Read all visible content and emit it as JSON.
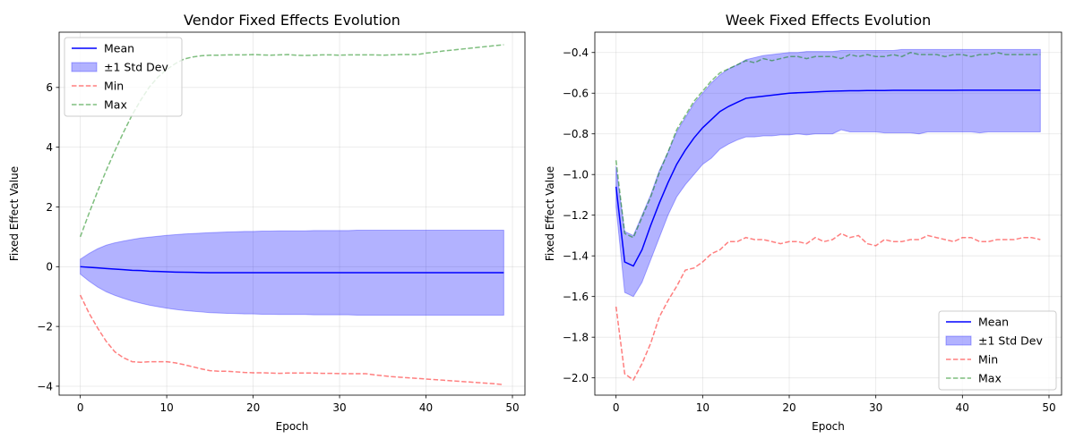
{
  "chart_data": [
    {
      "type": "line",
      "title": "Vendor Fixed Effects Evolution",
      "xlabel": "Epoch",
      "ylabel": "Fixed Effect Value",
      "xlim": [
        -2.45,
        51.45
      ],
      "ylim": [
        -4.3,
        7.85
      ],
      "xticks": [
        0,
        10,
        20,
        30,
        40,
        50
      ],
      "yticks": [
        -4,
        -2,
        0,
        2,
        4,
        6
      ],
      "grid": true,
      "legend": "upper left",
      "x": [
        0,
        1,
        2,
        3,
        4,
        5,
        6,
        7,
        8,
        9,
        10,
        11,
        12,
        13,
        14,
        15,
        16,
        17,
        18,
        19,
        20,
        21,
        22,
        23,
        24,
        25,
        26,
        27,
        28,
        29,
        30,
        31,
        32,
        33,
        34,
        35,
        36,
        37,
        38,
        39,
        40,
        41,
        42,
        43,
        44,
        45,
        46,
        47,
        48,
        49
      ],
      "mean": [
        0,
        -0.02,
        -0.04,
        -0.06,
        -0.08,
        -0.1,
        -0.12,
        -0.13,
        -0.15,
        -0.16,
        -0.17,
        -0.18,
        -0.185,
        -0.19,
        -0.195,
        -0.2,
        -0.2,
        -0.2,
        -0.2,
        -0.2,
        -0.2,
        -0.2,
        -0.2,
        -0.2,
        -0.2,
        -0.2,
        -0.2,
        -0.2,
        -0.2,
        -0.2,
        -0.2,
        -0.2,
        -0.2,
        -0.2,
        -0.2,
        -0.2,
        -0.2,
        -0.2,
        -0.2,
        -0.2,
        -0.2,
        -0.2,
        -0.2,
        -0.2,
        -0.2,
        -0.2,
        -0.2,
        -0.2,
        -0.2,
        -0.2
      ],
      "std": [
        0.25,
        0.46,
        0.64,
        0.78,
        0.88,
        0.96,
        1.03,
        1.09,
        1.14,
        1.18,
        1.22,
        1.25,
        1.28,
        1.3,
        1.32,
        1.34,
        1.35,
        1.36,
        1.37,
        1.38,
        1.38,
        1.39,
        1.39,
        1.4,
        1.4,
        1.4,
        1.4,
        1.41,
        1.41,
        1.41,
        1.41,
        1.41,
        1.42,
        1.42,
        1.42,
        1.42,
        1.42,
        1.42,
        1.42,
        1.42,
        1.42,
        1.42,
        1.42,
        1.42,
        1.42,
        1.42,
        1.42,
        1.42,
        1.42,
        1.42
      ],
      "min": [
        -0.95,
        -1.55,
        -2.05,
        -2.5,
        -2.85,
        -3.05,
        -3.18,
        -3.2,
        -3.18,
        -3.18,
        -3.18,
        -3.22,
        -3.28,
        -3.35,
        -3.42,
        -3.48,
        -3.5,
        -3.5,
        -3.52,
        -3.54,
        -3.55,
        -3.55,
        -3.56,
        -3.57,
        -3.56,
        -3.56,
        -3.56,
        -3.56,
        -3.57,
        -3.57,
        -3.58,
        -3.58,
        -3.58,
        -3.58,
        -3.62,
        -3.65,
        -3.68,
        -3.7,
        -3.72,
        -3.74,
        -3.76,
        -3.78,
        -3.8,
        -3.82,
        -3.84,
        -3.86,
        -3.88,
        -3.9,
        -3.92,
        -3.95
      ],
      "max": [
        1.0,
        1.78,
        2.52,
        3.22,
        3.88,
        4.5,
        5.08,
        5.58,
        6.02,
        6.35,
        6.6,
        6.8,
        6.95,
        7.02,
        7.06,
        7.08,
        7.08,
        7.09,
        7.09,
        7.09,
        7.1,
        7.09,
        7.08,
        7.09,
        7.1,
        7.08,
        7.07,
        7.08,
        7.09,
        7.09,
        7.08,
        7.09,
        7.09,
        7.09,
        7.09,
        7.08,
        7.09,
        7.1,
        7.1,
        7.1,
        7.15,
        7.18,
        7.22,
        7.25,
        7.28,
        7.31,
        7.34,
        7.37,
        7.4,
        7.43
      ],
      "series_names": [
        "Mean",
        "±1 Std Dev",
        "Min",
        "Max"
      ]
    },
    {
      "type": "line",
      "title": "Week Fixed Effects Evolution",
      "xlabel": "Epoch",
      "ylabel": "Fixed Effect Value",
      "xlim": [
        -2.45,
        51.45
      ],
      "ylim": [
        -2.085,
        -0.3
      ],
      "xticks": [
        0,
        10,
        20,
        30,
        40,
        50
      ],
      "yticks": [
        -2.0,
        -1.8,
        -1.6,
        -1.4,
        -1.2,
        -1.0,
        -0.8,
        -0.6,
        -0.4
      ],
      "grid": true,
      "legend": "lower right",
      "x": [
        0,
        1,
        2,
        3,
        4,
        5,
        6,
        7,
        8,
        9,
        10,
        11,
        12,
        13,
        14,
        15,
        16,
        17,
        18,
        19,
        20,
        21,
        22,
        23,
        24,
        25,
        26,
        27,
        28,
        29,
        30,
        31,
        32,
        33,
        34,
        35,
        36,
        37,
        38,
        39,
        40,
        41,
        42,
        43,
        44,
        45,
        46,
        47,
        48,
        49
      ],
      "mean": [
        -1.06,
        -1.43,
        -1.45,
        -1.37,
        -1.25,
        -1.14,
        -1.04,
        -0.95,
        -0.88,
        -0.82,
        -0.77,
        -0.73,
        -0.69,
        -0.665,
        -0.645,
        -0.625,
        -0.62,
        -0.615,
        -0.61,
        -0.605,
        -0.6,
        -0.598,
        -0.596,
        -0.594,
        -0.592,
        -0.59,
        -0.589,
        -0.588,
        -0.588,
        -0.587,
        -0.587,
        -0.587,
        -0.586,
        -0.586,
        -0.586,
        -0.586,
        -0.586,
        -0.586,
        -0.586,
        -0.586,
        -0.585,
        -0.585,
        -0.585,
        -0.585,
        -0.585,
        -0.585,
        -0.585,
        -0.585,
        -0.585,
        -0.585
      ],
      "upper": [
        -0.96,
        -1.28,
        -1.3,
        -1.2,
        -1.1,
        -0.98,
        -0.89,
        -0.79,
        -0.72,
        -0.65,
        -0.6,
        -0.55,
        -0.51,
        -0.48,
        -0.46,
        -0.435,
        -0.425,
        -0.415,
        -0.41,
        -0.405,
        -0.4,
        -0.4,
        -0.395,
        -0.395,
        -0.395,
        -0.395,
        -0.39,
        -0.39,
        -0.39,
        -0.39,
        -0.39,
        -0.39,
        -0.39,
        -0.385,
        -0.385,
        -0.385,
        -0.385,
        -0.385,
        -0.385,
        -0.385,
        -0.385,
        -0.385,
        -0.385,
        -0.385,
        -0.385,
        -0.385,
        -0.385,
        -0.385,
        -0.385,
        -0.385
      ],
      "lower": [
        -1.16,
        -1.58,
        -1.6,
        -1.53,
        -1.42,
        -1.31,
        -1.2,
        -1.11,
        -1.05,
        -1.0,
        -0.95,
        -0.92,
        -0.875,
        -0.85,
        -0.83,
        -0.815,
        -0.815,
        -0.81,
        -0.81,
        -0.805,
        -0.805,
        -0.8,
        -0.805,
        -0.8,
        -0.8,
        -0.8,
        -0.78,
        -0.79,
        -0.79,
        -0.79,
        -0.79,
        -0.795,
        -0.795,
        -0.795,
        -0.795,
        -0.8,
        -0.79,
        -0.79,
        -0.79,
        -0.79,
        -0.79,
        -0.79,
        -0.795,
        -0.79,
        -0.79,
        -0.79,
        -0.79,
        -0.79,
        -0.79,
        -0.79
      ],
      "min": [
        -1.65,
        -1.98,
        -2.01,
        -1.93,
        -1.83,
        -1.7,
        -1.62,
        -1.55,
        -1.47,
        -1.46,
        -1.43,
        -1.39,
        -1.37,
        -1.33,
        -1.33,
        -1.31,
        -1.32,
        -1.32,
        -1.33,
        -1.34,
        -1.33,
        -1.33,
        -1.34,
        -1.31,
        -1.33,
        -1.32,
        -1.29,
        -1.31,
        -1.3,
        -1.34,
        -1.35,
        -1.32,
        -1.33,
        -1.33,
        -1.32,
        -1.32,
        -1.3,
        -1.31,
        -1.32,
        -1.33,
        -1.31,
        -1.31,
        -1.33,
        -1.33,
        -1.32,
        -1.32,
        -1.32,
        -1.31,
        -1.31,
        -1.32
      ],
      "max": [
        -0.93,
        -1.29,
        -1.31,
        -1.21,
        -1.11,
        -0.99,
        -0.89,
        -0.78,
        -0.71,
        -0.64,
        -0.59,
        -0.54,
        -0.5,
        -0.48,
        -0.46,
        -0.44,
        -0.45,
        -0.43,
        -0.44,
        -0.43,
        -0.42,
        -0.42,
        -0.43,
        -0.42,
        -0.42,
        -0.42,
        -0.43,
        -0.41,
        -0.42,
        -0.41,
        -0.42,
        -0.42,
        -0.41,
        -0.42,
        -0.4,
        -0.41,
        -0.41,
        -0.41,
        -0.42,
        -0.41,
        -0.41,
        -0.42,
        -0.41,
        -0.41,
        -0.4,
        -0.41,
        -0.41,
        -0.41,
        -0.41,
        -0.41
      ],
      "series_names": [
        "Mean",
        "±1 Std Dev",
        "Min",
        "Max"
      ]
    }
  ],
  "colors": {
    "mean": "#0000ff",
    "band": "#0000ff",
    "min": "#ff0000",
    "max": "#008000"
  }
}
